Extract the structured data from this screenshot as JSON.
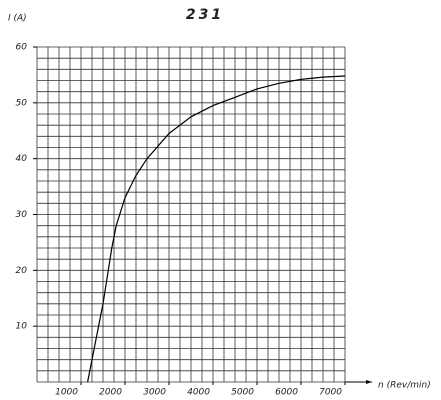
{
  "chart_data": {
    "type": "line",
    "title": "231",
    "ylabel": "I (A)",
    "xlabel": "n (Rev/min)",
    "x": [
      1150,
      1300,
      1500,
      1700,
      1800,
      2000,
      2250,
      2500,
      3000,
      3500,
      4000,
      4500,
      5000,
      5500,
      6000,
      6500,
      7000
    ],
    "values": [
      0,
      6,
      14,
      24,
      28,
      33,
      37,
      40,
      44.5,
      47.5,
      49.5,
      51,
      52.5,
      53.5,
      54.2,
      54.6,
      54.8
    ],
    "color": "#000000",
    "xlim": [
      0,
      7000
    ],
    "ylim": [
      0,
      60
    ],
    "xticks": [
      1000,
      2000,
      3000,
      4000,
      5000,
      6000,
      7000
    ],
    "yticks": [
      10,
      20,
      30,
      40,
      50,
      60
    ],
    "xgrid": [
      0,
      250,
      500,
      750,
      1000,
      1250,
      1500,
      1750,
      2000,
      2250,
      2500,
      2750,
      3000,
      3250,
      3500,
      3750,
      4000,
      4250,
      4500,
      4750,
      5000,
      5250,
      5500,
      5750,
      6000,
      6250,
      6500,
      6750,
      7000
    ],
    "ygrid": [
      0,
      2,
      4,
      6,
      8,
      10,
      12,
      14,
      16,
      18,
      20,
      22,
      24,
      26,
      28,
      30,
      32,
      34,
      36,
      38,
      40,
      42,
      44,
      46,
      48,
      50,
      52,
      54,
      56,
      58,
      60
    ],
    "grid": true
  }
}
